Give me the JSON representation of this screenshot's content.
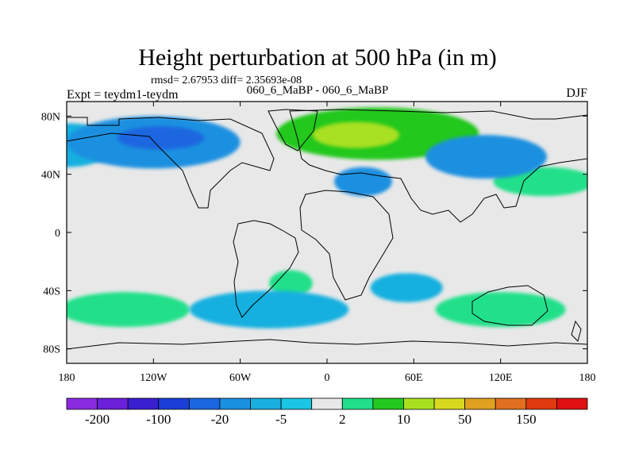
{
  "chart_data": {
    "type": "heatmap",
    "title": "Height perturbation at 500 hPa (in m)",
    "subtitle": "rmsd= 2.67953  diff= 2.35693e-08",
    "left_string": "Expt = teydm1-teydm",
    "center_string": "060_6_MaBP - 060_6_MaBP",
    "right_string": "DJF",
    "x_ticks": [
      "180",
      "120W",
      "60W",
      "0",
      "60E",
      "120E",
      "180"
    ],
    "y_ticks": [
      "80N",
      "40N",
      "0",
      "40S",
      "80S"
    ],
    "xlim": [
      -180,
      180
    ],
    "ylim": [
      -90,
      90
    ],
    "colorbar": {
      "colors": [
        "#8a2be2",
        "#6a1fd8",
        "#3a1fd0",
        "#1b3fd6",
        "#1a66e0",
        "#1a90e0",
        "#18b0e0",
        "#1ac6e6",
        "#e8e8e8",
        "#20e08a",
        "#22c81e",
        "#a8e020",
        "#d8d820",
        "#e0a020",
        "#e07020",
        "#e03a10",
        "#e01010"
      ],
      "labels": [
        "-200",
        "-100",
        "-20",
        "-5",
        "2",
        "10",
        "50",
        "150"
      ]
    },
    "blobs": [
      {
        "lon": -120,
        "lat": 62,
        "rx": 60,
        "ry": 18,
        "level": -3,
        "name": "NE Pacific low"
      },
      {
        "lon": -115,
        "lat": 65,
        "rx": 30,
        "ry": 8,
        "level": -4,
        "name": "NE Pacific low core"
      },
      {
        "lon": 35,
        "lat": 68,
        "rx": 70,
        "ry": 18,
        "level": 2,
        "name": "Eurasian high"
      },
      {
        "lon": 20,
        "lat": 67,
        "rx": 30,
        "ry": 9,
        "level": 3,
        "name": "Eurasian high core"
      },
      {
        "lon": 110,
        "lat": 52,
        "rx": 42,
        "ry": 15,
        "level": -3,
        "name": "E Asia low"
      },
      {
        "lon": 25,
        "lat": 35,
        "rx": 20,
        "ry": 10,
        "level": -3,
        "name": "Mediterranean low"
      },
      {
        "lon": -178,
        "lat": 60,
        "rx": 30,
        "ry": 15,
        "level": -2,
        "name": "Dateline low"
      },
      {
        "lon": 150,
        "lat": 35,
        "rx": 35,
        "ry": 10,
        "level": 1,
        "name": "NW Pacific high"
      },
      {
        "lon": -140,
        "lat": -53,
        "rx": 45,
        "ry": 12,
        "level": 1,
        "name": "S Pacific high"
      },
      {
        "lon": -40,
        "lat": -53,
        "rx": 55,
        "ry": 13,
        "level": -2,
        "name": "S Atlantic low"
      },
      {
        "lon": -25,
        "lat": -35,
        "rx": 15,
        "ry": 9,
        "level": 1,
        "name": "SW Atlantic high"
      },
      {
        "lon": 55,
        "lat": -38,
        "rx": 25,
        "ry": 10,
        "level": -2,
        "name": "S Indian low"
      },
      {
        "lon": 120,
        "lat": -53,
        "rx": 45,
        "ry": 12,
        "level": 1,
        "name": "S Indian high"
      }
    ]
  }
}
